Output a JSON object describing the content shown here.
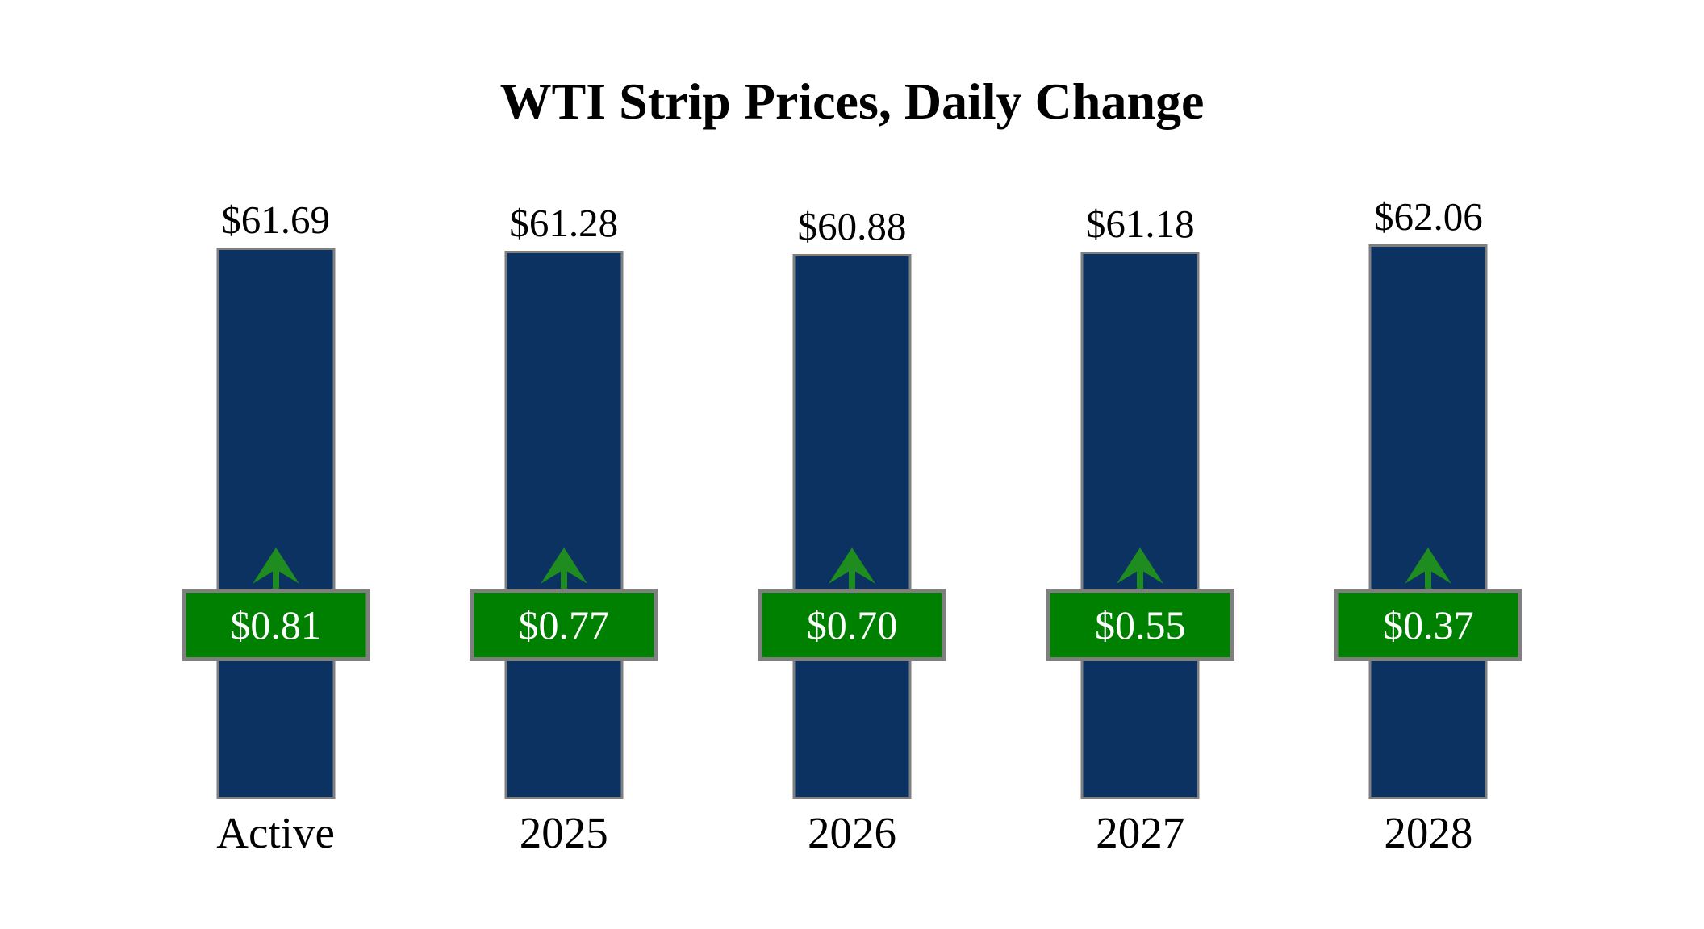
{
  "chart_data": {
    "type": "bar",
    "title": "WTI Strip Prices, Daily Change",
    "categories": [
      "Active",
      "2025",
      "2026",
      "2027",
      "2028"
    ],
    "series": [
      {
        "name": "Strip Price",
        "values": [
          61.69,
          61.28,
          60.88,
          61.18,
          62.06
        ],
        "labels": [
          "$61.69",
          "$61.28",
          "$60.88",
          "$61.18",
          "$62.06"
        ]
      },
      {
        "name": "Daily Change",
        "values": [
          0.81,
          0.77,
          0.7,
          0.55,
          0.37
        ],
        "labels": [
          "$0.81",
          "$0.77",
          "$0.70",
          "$0.55",
          "$0.37"
        ],
        "direction": "up"
      }
    ],
    "legend_position": "none",
    "axes_visible": false,
    "grid": false
  },
  "colors": {
    "background": "#ffffff",
    "bar_fill": "#0b3260",
    "badge_fill": "#008000",
    "arrow_green": "#1f8c1f",
    "border_gray": "#7f7f7f",
    "badge_text": "#ffffff",
    "text": "#000000"
  },
  "icons": {
    "up_arrow": "up-arrow"
  }
}
